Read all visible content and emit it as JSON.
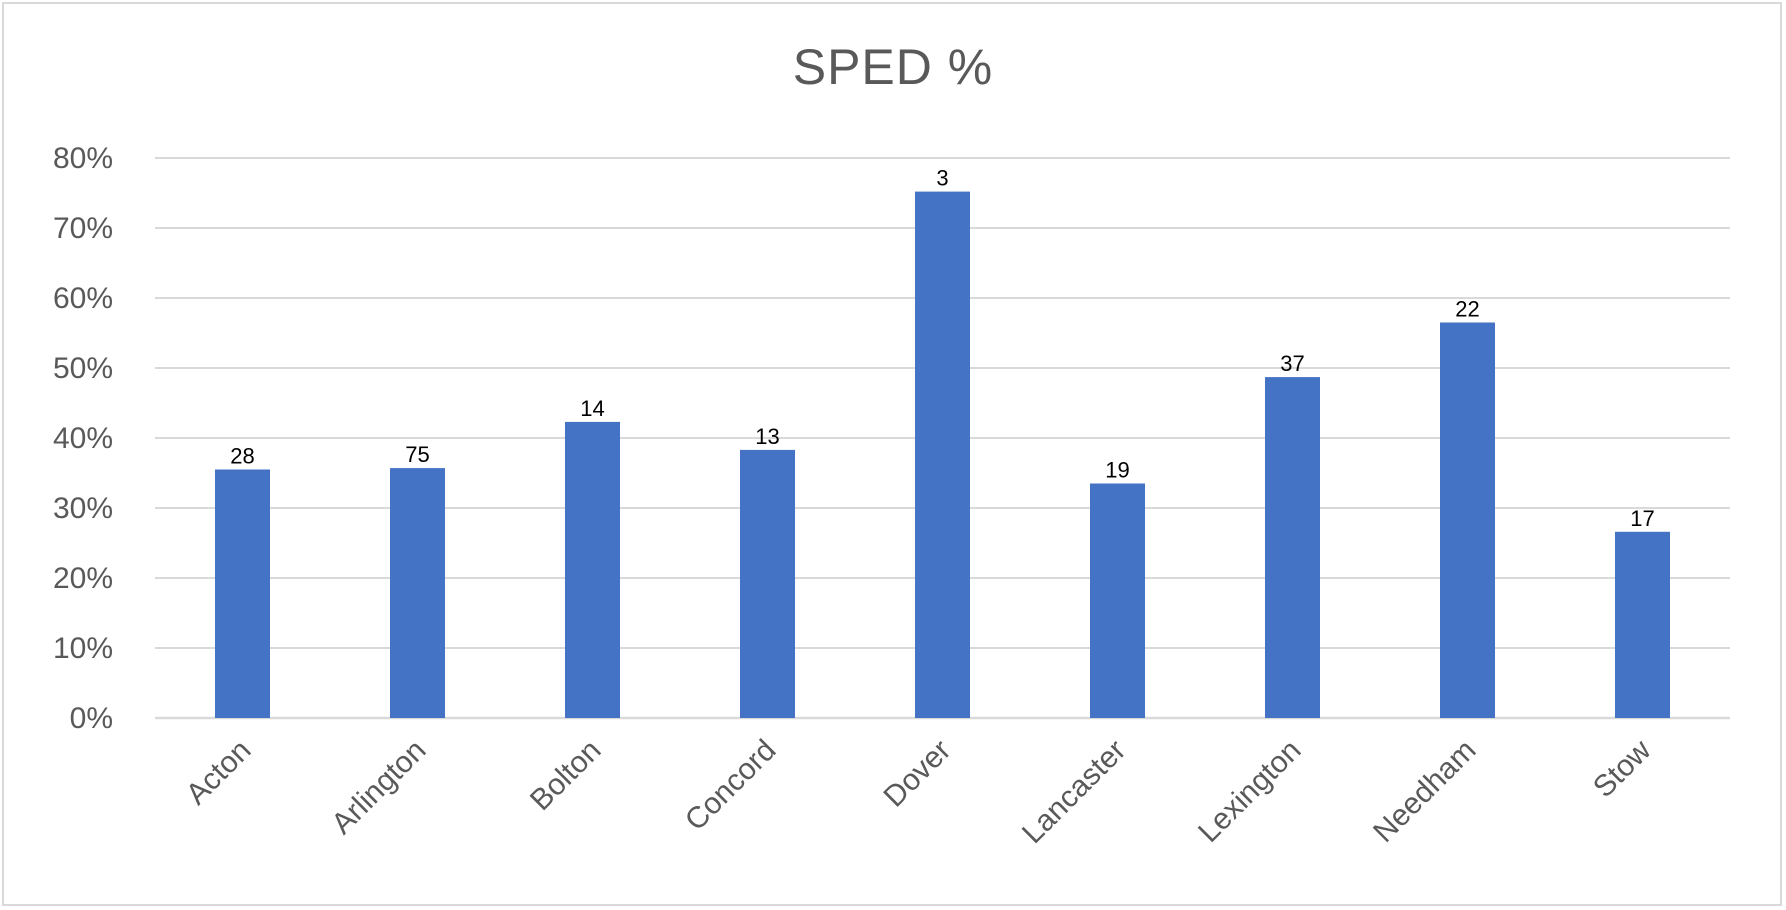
{
  "chart_data": {
    "type": "bar",
    "title": "SPED %",
    "xlabel": "",
    "ylabel": "",
    "categories": [
      "Acton",
      "Arlington",
      "Bolton",
      "Concord",
      "Dover",
      "Lancaster",
      "Lexington",
      "Needham",
      "Stow"
    ],
    "series": [
      {
        "values": [
          0.355,
          0.357,
          0.423,
          0.383,
          0.752,
          0.335,
          0.487,
          0.565,
          0.266
        ],
        "data_labels": [
          "28",
          "75",
          "14",
          "13",
          "3",
          "19",
          "37",
          "22",
          "17"
        ]
      }
    ],
    "y_ticks": [
      "0%",
      "10%",
      "20%",
      "30%",
      "40%",
      "50%",
      "60%",
      "70%",
      "80%"
    ],
    "ylim": [
      0,
      0.8
    ],
    "grid": true,
    "legend": "none",
    "colors": {
      "bar": "#4472C4",
      "grid": "#d9d9d9",
      "axis_text": "#595959",
      "data_label_text": "#000000"
    }
  }
}
